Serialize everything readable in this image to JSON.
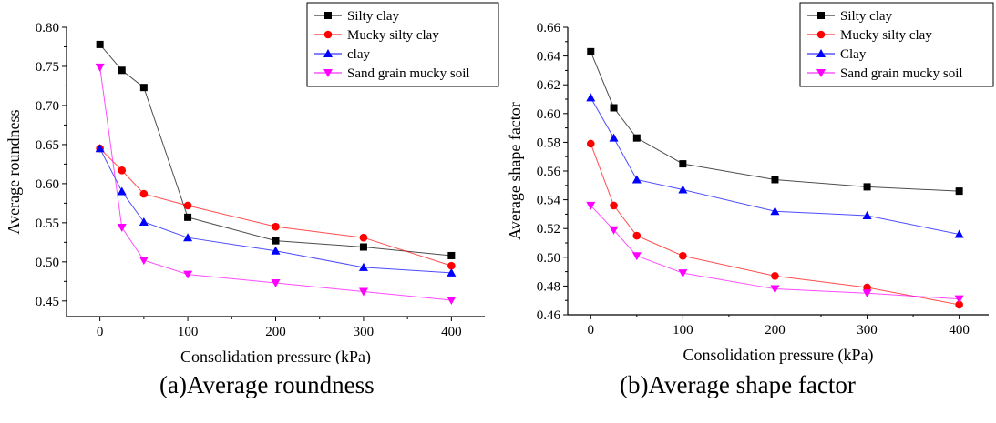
{
  "chart_data": [
    {
      "type": "line",
      "x": [
        0,
        25,
        50,
        100,
        200,
        300,
        400
      ],
      "xticks": [
        0,
        100,
        200,
        300,
        400
      ],
      "xlabel": "Consolidation pressure (kPa)",
      "ylabel": "Average roundness",
      "ylim": [
        0.43,
        0.8
      ],
      "yticks": [
        0.45,
        0.5,
        0.55,
        0.6,
        0.65,
        0.7,
        0.75,
        0.8
      ],
      "ytick_decimals": 2,
      "legend_position": "top-right",
      "caption": "(a)Average roundness",
      "series": [
        {
          "name": "Silty clay",
          "values": [
            0.778,
            0.745,
            0.723,
            0.557,
            0.527,
            0.519,
            0.508
          ],
          "color": "#000000",
          "marker": "square"
        },
        {
          "name": "Mucky silty clay",
          "values": [
            0.645,
            0.617,
            0.587,
            0.572,
            0.545,
            0.531,
            0.495
          ],
          "color": "#ff0000",
          "marker": "circle"
        },
        {
          "name": "clay",
          "values": [
            0.645,
            0.59,
            0.551,
            0.531,
            0.514,
            0.493,
            0.486
          ],
          "color": "#0000ff",
          "marker": "triangle-up"
        },
        {
          "name": "Sand grain mucky soil",
          "values": [
            0.749,
            0.544,
            0.502,
            0.484,
            0.473,
            0.462,
            0.451
          ],
          "color": "#ff00ff",
          "marker": "triangle-down"
        }
      ]
    },
    {
      "type": "line",
      "x": [
        0,
        25,
        50,
        100,
        200,
        300,
        400
      ],
      "xticks": [
        0,
        100,
        200,
        300,
        400
      ],
      "xlabel": "Consolidation pressure (kPa)",
      "ylabel": "Average shape factor",
      "ylim": [
        0.46,
        0.66
      ],
      "yticks": [
        0.46,
        0.48,
        0.5,
        0.52,
        0.54,
        0.56,
        0.58,
        0.6,
        0.62,
        0.64,
        0.66
      ],
      "ytick_decimals": 2,
      "legend_position": "top-right",
      "caption": "(b)Average shape factor",
      "series": [
        {
          "name": "Silty clay",
          "values": [
            0.643,
            0.604,
            0.583,
            0.565,
            0.554,
            0.549,
            0.546
          ],
          "color": "#000000",
          "marker": "square"
        },
        {
          "name": "Mucky silty clay",
          "values": [
            0.579,
            0.536,
            0.515,
            0.501,
            0.487,
            0.479,
            0.467
          ],
          "color": "#ff0000",
          "marker": "circle"
        },
        {
          "name": "Clay",
          "values": [
            0.611,
            0.583,
            0.554,
            0.547,
            0.532,
            0.529,
            0.516
          ],
          "color": "#0000ff",
          "marker": "triangle-up"
        },
        {
          "name": "Sand grain mucky soil",
          "values": [
            0.536,
            0.519,
            0.501,
            0.489,
            0.478,
            0.475,
            0.471
          ],
          "color": "#ff00ff",
          "marker": "triangle-down"
        }
      ]
    }
  ]
}
